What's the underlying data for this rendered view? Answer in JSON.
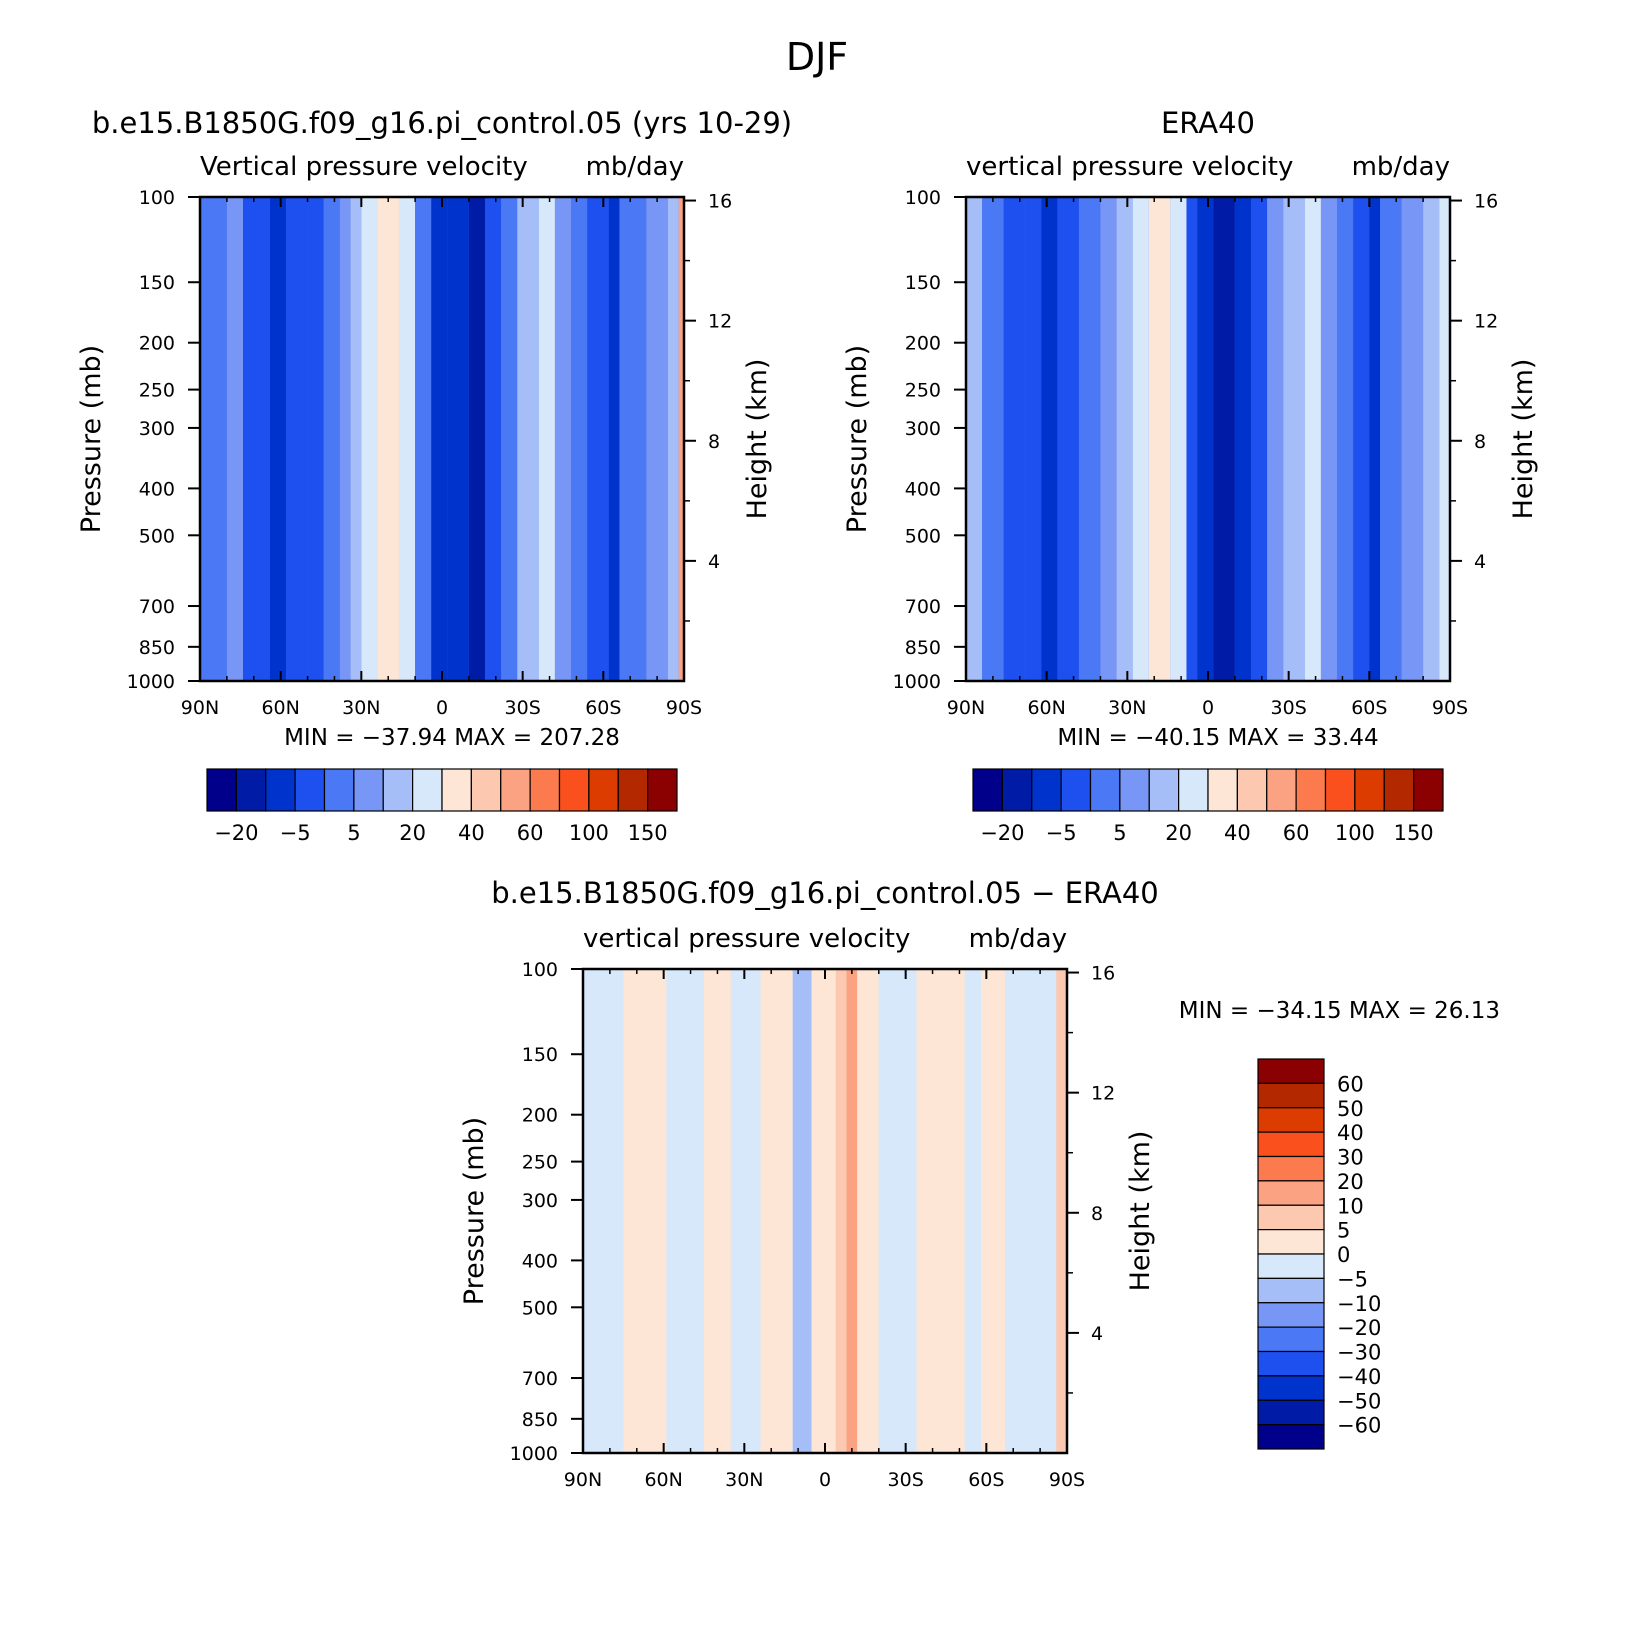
{
  "figure": {
    "title": "DJF"
  },
  "chart_data": [
    {
      "type": "heatmap",
      "id": "model",
      "title": "b.e15.B1850G.f09_g16.pi_control.05 (yrs 10-29)",
      "subtitle_left": "Vertical pressure velocity",
      "subtitle_right": "mb/day",
      "ylabel": "Pressure (mb)",
      "ylabel_right": "Height (km)",
      "x_ticks": [
        "90N",
        "60N",
        "30N",
        "0",
        "30S",
        "60S",
        "90S"
      ],
      "x_values": [
        90,
        60,
        30,
        0,
        -30,
        -60,
        -90
      ],
      "y_ticks": [
        "100",
        "150",
        "200",
        "250",
        "300",
        "400",
        "500",
        "700",
        "850",
        "1000"
      ],
      "y_values": [
        100,
        150,
        200,
        250,
        300,
        400,
        500,
        700,
        850,
        1000
      ],
      "y_right_ticks": [
        "16",
        "12",
        "8",
        "4"
      ],
      "y_right_values": [
        16,
        12,
        8,
        4
      ],
      "stats_text": "MIN = −37.94   MAX = 207.28",
      "min": -37.94,
      "max": 207.28,
      "colorbar_orientation": "horizontal",
      "colorbar_labels": [
        "−20",
        "−5",
        "5",
        "20",
        "40",
        "60",
        "100",
        "150"
      ],
      "bands_lat": [
        {
          "from": 90,
          "to": 80,
          "level": 4
        },
        {
          "from": 80,
          "to": 74,
          "level": 5
        },
        {
          "from": 74,
          "to": 64,
          "level": 3
        },
        {
          "from": 64,
          "to": 58,
          "level": 2
        },
        {
          "from": 58,
          "to": 50,
          "level": 3
        },
        {
          "from": 50,
          "to": 44,
          "level": 3
        },
        {
          "from": 44,
          "to": 38,
          "level": 4
        },
        {
          "from": 38,
          "to": 34,
          "level": 5
        },
        {
          "from": 34,
          "to": 30,
          "level": 6
        },
        {
          "from": 30,
          "to": 24,
          "level": 7
        },
        {
          "from": 24,
          "to": 16,
          "level": 8
        },
        {
          "from": 16,
          "to": 10,
          "level": 7
        },
        {
          "from": 10,
          "to": 4,
          "level": 4
        },
        {
          "from": 4,
          "to": -2,
          "level": 2
        },
        {
          "from": -2,
          "to": -10,
          "level": 2
        },
        {
          "from": -10,
          "to": -16,
          "level": 1
        },
        {
          "from": -16,
          "to": -22,
          "level": 3
        },
        {
          "from": -22,
          "to": -28,
          "level": 4
        },
        {
          "from": -28,
          "to": -36,
          "level": 6
        },
        {
          "from": -36,
          "to": -42,
          "level": 7
        },
        {
          "from": -42,
          "to": -48,
          "level": 5
        },
        {
          "from": -48,
          "to": -54,
          "level": 4
        },
        {
          "from": -54,
          "to": -62,
          "level": 3
        },
        {
          "from": -62,
          "to": -66,
          "level": 2
        },
        {
          "from": -66,
          "to": -76,
          "level": 4
        },
        {
          "from": -76,
          "to": -84,
          "level": 5
        },
        {
          "from": -84,
          "to": -88,
          "level": 6
        },
        {
          "from": -88,
          "to": -90,
          "level": 10
        }
      ]
    },
    {
      "type": "heatmap",
      "id": "obs",
      "title": "ERA40",
      "subtitle_left": "vertical pressure velocity",
      "subtitle_right": "mb/day",
      "ylabel": "Pressure (mb)",
      "ylabel_right": "Height (km)",
      "x_ticks": [
        "90N",
        "60N",
        "30N",
        "0",
        "30S",
        "60S",
        "90S"
      ],
      "x_values": [
        90,
        60,
        30,
        0,
        -30,
        -60,
        -90
      ],
      "y_ticks": [
        "100",
        "150",
        "200",
        "250",
        "300",
        "400",
        "500",
        "700",
        "850",
        "1000"
      ],
      "y_values": [
        100,
        150,
        200,
        250,
        300,
        400,
        500,
        700,
        850,
        1000
      ],
      "y_right_ticks": [
        "16",
        "12",
        "8",
        "4"
      ],
      "y_right_values": [
        16,
        12,
        8,
        4
      ],
      "stats_text": "MIN = −40.15   MAX =   33.44",
      "min": -40.15,
      "max": 33.44,
      "colorbar_orientation": "horizontal",
      "colorbar_labels": [
        "−20",
        "−5",
        "5",
        "20",
        "40",
        "60",
        "100",
        "150"
      ],
      "bands_lat": [
        {
          "from": 90,
          "to": 84,
          "level": 6
        },
        {
          "from": 84,
          "to": 76,
          "level": 4
        },
        {
          "from": 76,
          "to": 68,
          "level": 3
        },
        {
          "from": 68,
          "to": 62,
          "level": 3
        },
        {
          "from": 62,
          "to": 56,
          "level": 2
        },
        {
          "from": 56,
          "to": 48,
          "level": 3
        },
        {
          "from": 48,
          "to": 40,
          "level": 4
        },
        {
          "from": 40,
          "to": 34,
          "level": 5
        },
        {
          "from": 34,
          "to": 28,
          "level": 6
        },
        {
          "from": 28,
          "to": 22,
          "level": 7
        },
        {
          "from": 22,
          "to": 14,
          "level": 8
        },
        {
          "from": 14,
          "to": 8,
          "level": 7
        },
        {
          "from": 8,
          "to": 4,
          "level": 3
        },
        {
          "from": 4,
          "to": -2,
          "level": 2
        },
        {
          "from": -2,
          "to": -10,
          "level": 1
        },
        {
          "from": -10,
          "to": -16,
          "level": 2
        },
        {
          "from": -16,
          "to": -22,
          "level": 3
        },
        {
          "from": -22,
          "to": -28,
          "level": 5
        },
        {
          "from": -28,
          "to": -36,
          "level": 6
        },
        {
          "from": -36,
          "to": -42,
          "level": 7
        },
        {
          "from": -42,
          "to": -48,
          "level": 5
        },
        {
          "from": -48,
          "to": -54,
          "level": 4
        },
        {
          "from": -54,
          "to": -60,
          "level": 3
        },
        {
          "from": -60,
          "to": -64,
          "level": 2
        },
        {
          "from": -64,
          "to": -72,
          "level": 4
        },
        {
          "from": -72,
          "to": -80,
          "level": 5
        },
        {
          "from": -80,
          "to": -86,
          "level": 6
        },
        {
          "from": -86,
          "to": -90,
          "level": 7
        }
      ]
    },
    {
      "type": "heatmap",
      "id": "diff",
      "title": "b.e15.B1850G.f09_g16.pi_control.05 − ERA40",
      "subtitle_left": "vertical pressure velocity",
      "subtitle_right": "mb/day",
      "ylabel": "Pressure (mb)",
      "ylabel_right": "Height (km)",
      "x_ticks": [
        "90N",
        "60N",
        "30N",
        "0",
        "30S",
        "60S",
        "90S"
      ],
      "x_values": [
        90,
        60,
        30,
        0,
        -30,
        -60,
        -90
      ],
      "y_ticks": [
        "100",
        "150",
        "200",
        "250",
        "300",
        "400",
        "500",
        "700",
        "850",
        "1000"
      ],
      "y_values": [
        100,
        150,
        200,
        250,
        300,
        400,
        500,
        700,
        850,
        1000
      ],
      "y_right_ticks": [
        "16",
        "12",
        "8",
        "4"
      ],
      "y_right_values": [
        16,
        12,
        8,
        4
      ],
      "stats_text": "MIN = −34.15   MAX =   26.13",
      "min": -34.15,
      "max": 26.13,
      "colorbar_orientation": "vertical",
      "colorbar_labels": [
        "60",
        "50",
        "40",
        "30",
        "20",
        "10",
        "5",
        "0",
        "−5",
        "−10",
        "−20",
        "−30",
        "−40",
        "−50",
        "−60"
      ],
      "bands_lat": [
        {
          "from": 90,
          "to": 75,
          "level": 7
        },
        {
          "from": 75,
          "to": 59,
          "level": 8
        },
        {
          "from": 59,
          "to": 45,
          "level": 7
        },
        {
          "from": 45,
          "to": 35,
          "level": 8
        },
        {
          "from": 35,
          "to": 24,
          "level": 7
        },
        {
          "from": 24,
          "to": 12,
          "level": 8
        },
        {
          "from": 12,
          "to": 5,
          "level": 6
        },
        {
          "from": 5,
          "to": -4,
          "level": 8
        },
        {
          "from": -4,
          "to": -8,
          "level": 9
        },
        {
          "from": -8,
          "to": -12,
          "level": 10
        },
        {
          "from": -12,
          "to": -20,
          "level": 8
        },
        {
          "from": -20,
          "to": -34,
          "level": 7
        },
        {
          "from": -34,
          "to": -52,
          "level": 8
        },
        {
          "from": -52,
          "to": -58,
          "level": 7
        },
        {
          "from": -58,
          "to": -67,
          "level": 8
        },
        {
          "from": -67,
          "to": -86,
          "level": 7
        },
        {
          "from": -86,
          "to": -90,
          "level": 9
        }
      ]
    }
  ],
  "colors": {
    "levels16": [
      "#00008a",
      "#001ca6",
      "#0033cc",
      "#1e50f0",
      "#4b78f5",
      "#7896f5",
      "#a5bef7",
      "#d7e8fb",
      "#fde6d6",
      "#fcc8b0",
      "#fba282",
      "#fb7a4e",
      "#f9501e",
      "#dc3c00",
      "#b42800",
      "#8b0000"
    ],
    "diff_levels": [
      "#00008a",
      "#001ca6",
      "#0033cc",
      "#1e50f0",
      "#4b78f5",
      "#7896f5",
      "#a5bef7",
      "#d7e8fb",
      "#fde6d6",
      "#fcc8b0",
      "#fba282",
      "#fb7a4e",
      "#f9501e",
      "#dc3c00",
      "#b42800",
      "#8b0000"
    ]
  }
}
